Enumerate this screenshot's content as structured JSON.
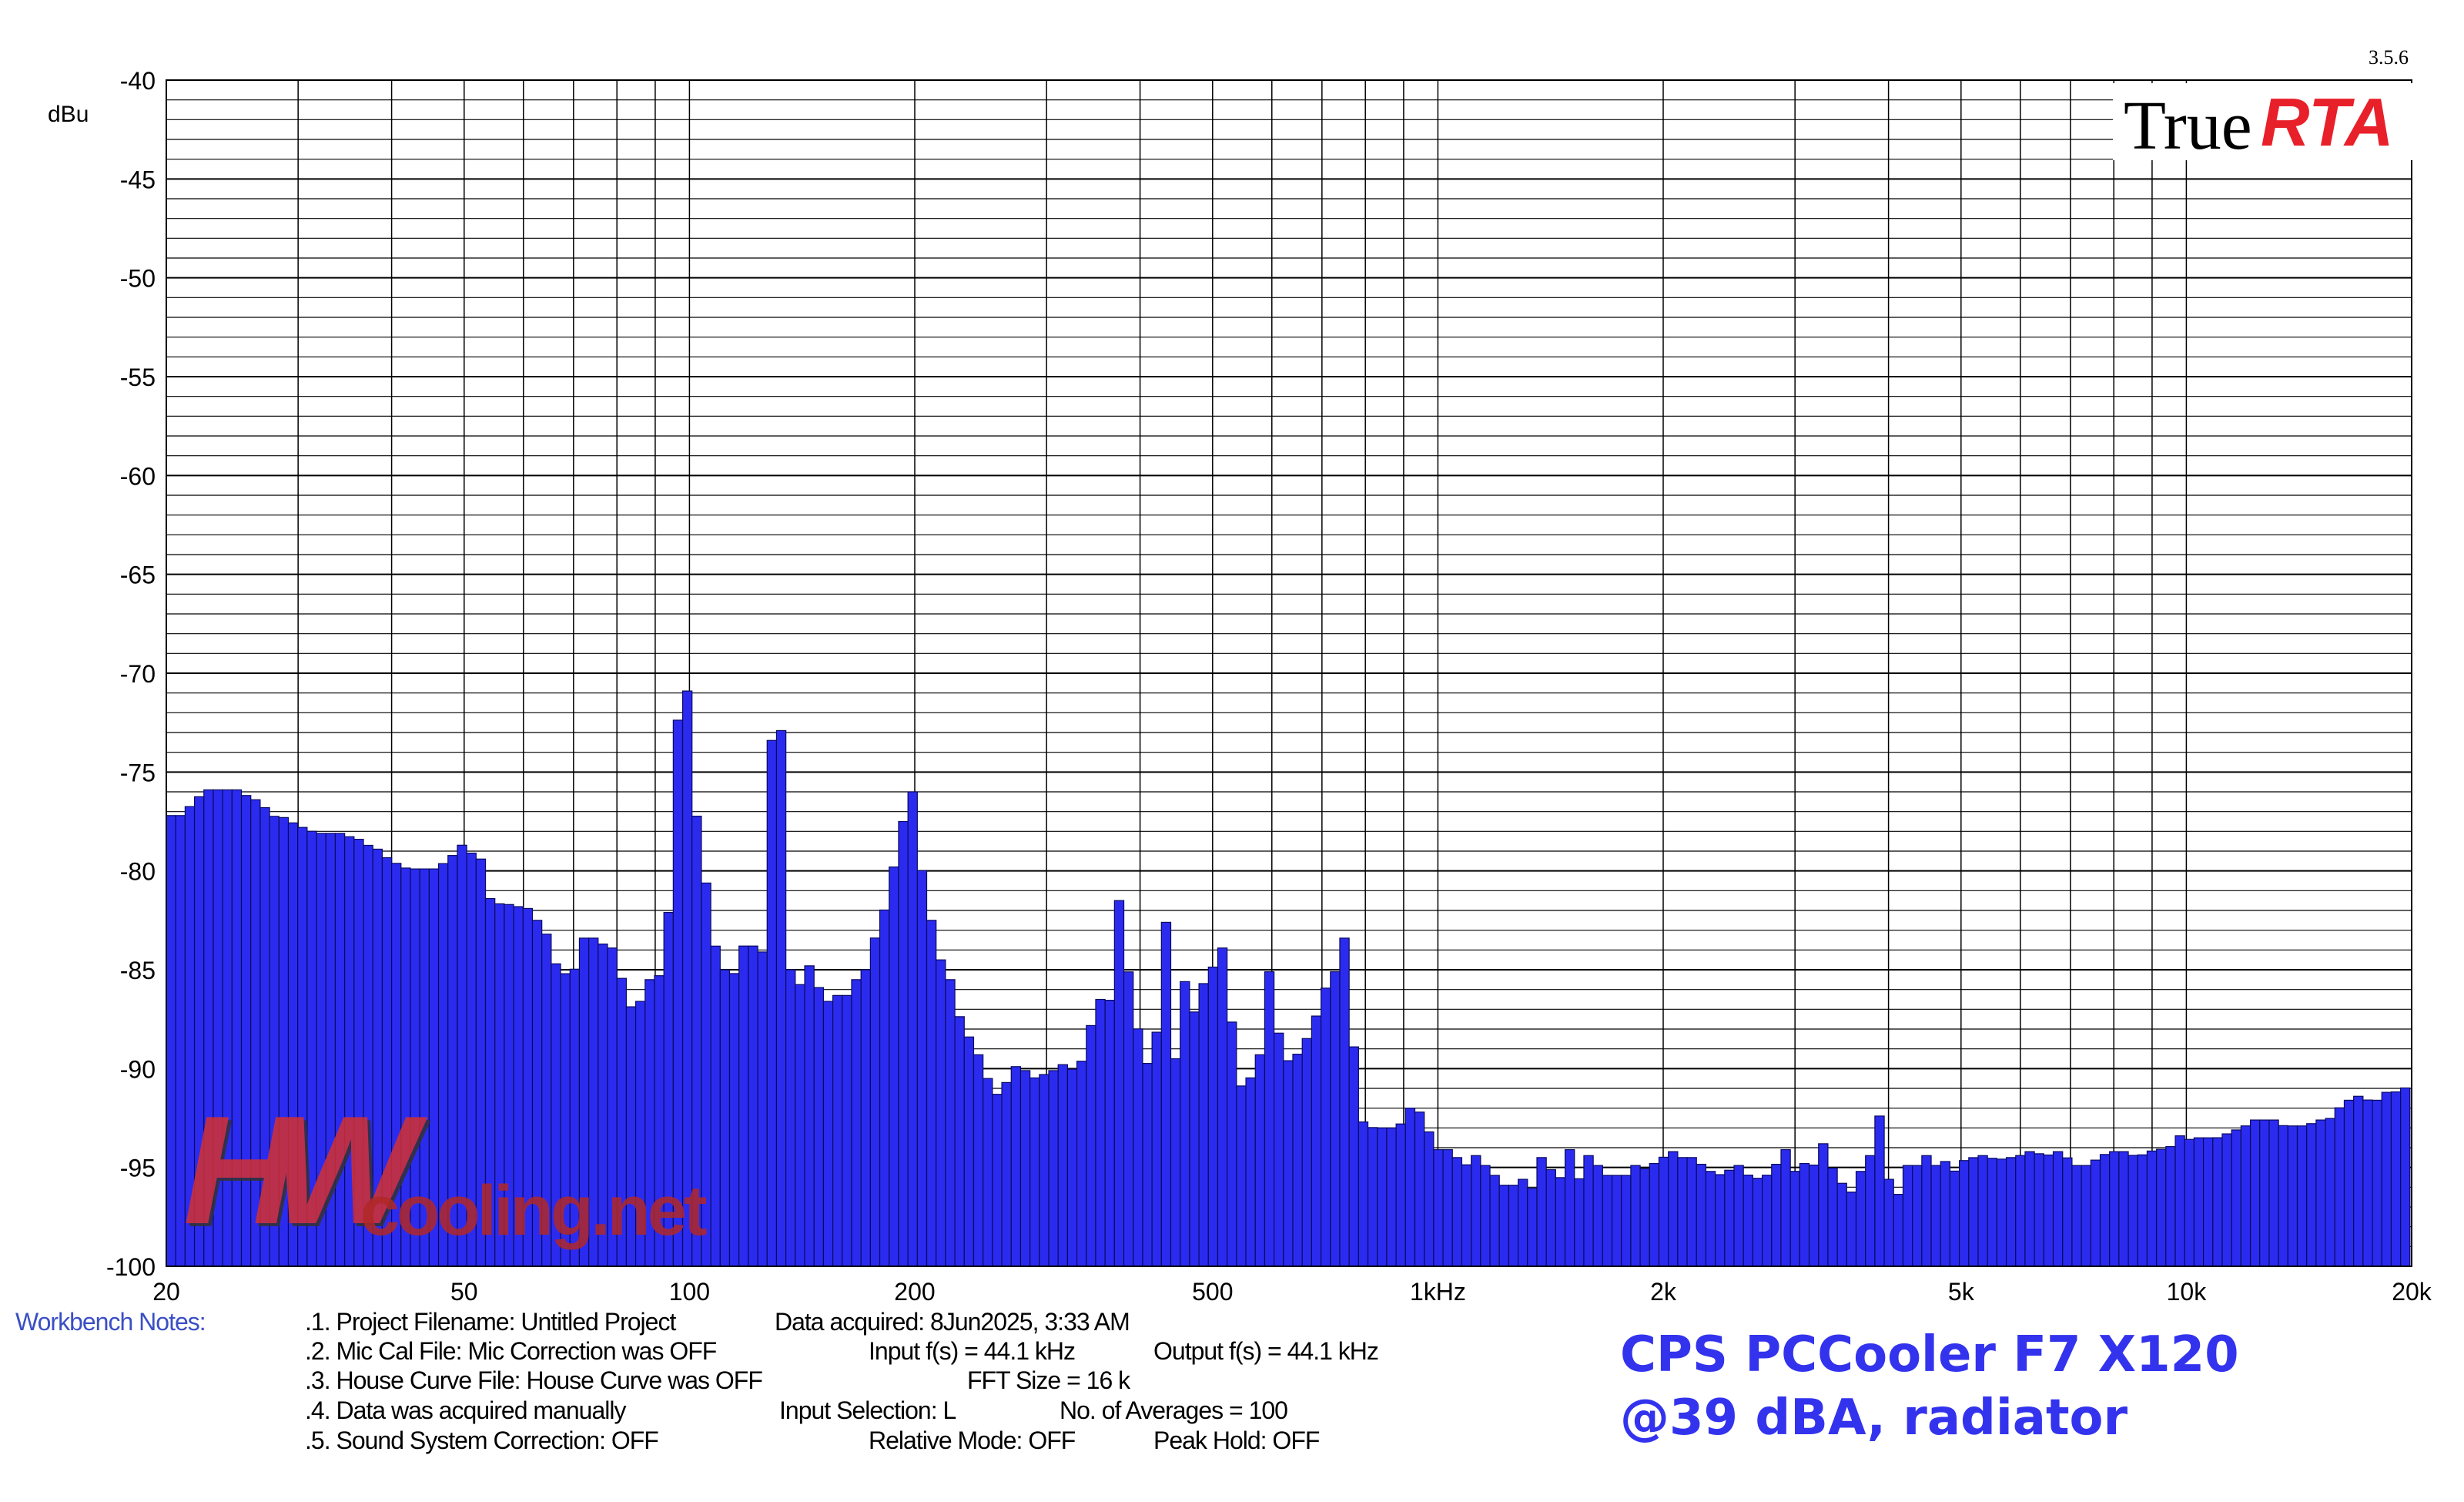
{
  "chart_data": {
    "type": "bar",
    "yunit": "dBu",
    "ylim": [
      -100,
      -40
    ],
    "xlim": [
      20,
      20000
    ],
    "x_scale": "log",
    "y_ticks": [
      "-40",
      "-45",
      "-50",
      "-55",
      "-60",
      "-65",
      "-70",
      "-75",
      "-80",
      "-85",
      "-90",
      "-95",
      "-100"
    ],
    "y_tick_values": [
      -40,
      -45,
      -50,
      -55,
      -60,
      -65,
      -70,
      -75,
      -80,
      -85,
      -90,
      -95,
      -100
    ],
    "x_ticks": [
      "20",
      "50",
      "100",
      "200",
      "500",
      "1kHz",
      "2k",
      "5k",
      "10k",
      "20k"
    ],
    "x_tick_values": [
      20,
      50,
      100,
      200,
      500,
      1000,
      2000,
      5000,
      10000,
      20000
    ],
    "grid": true,
    "bar_color": "#2b2bf0",
    "anchor_freqs": [
      20,
      21,
      22,
      23,
      24,
      25,
      26,
      27,
      28,
      29,
      30,
      32,
      34,
      36,
      38,
      40,
      42,
      44,
      46,
      48,
      50,
      52,
      54,
      56,
      58,
      60,
      62,
      64,
      66,
      68,
      70,
      72,
      74,
      76,
      78,
      80,
      82,
      84,
      86,
      88,
      90,
      92,
      94,
      96,
      98,
      100,
      103,
      106,
      109,
      112,
      115,
      118,
      121,
      123,
      126,
      129,
      132,
      135,
      138,
      141,
      144,
      147,
      150,
      153,
      156,
      159,
      162,
      165,
      168,
      171,
      174,
      177,
      180,
      185,
      190,
      195,
      200,
      205,
      210,
      215,
      220,
      225,
      230,
      235,
      240,
      245,
      250,
      255,
      260,
      270,
      280,
      290,
      300,
      310,
      320,
      330,
      340,
      350,
      360,
      370,
      380,
      390,
      400,
      410,
      420,
      430,
      440,
      450,
      460,
      470,
      480,
      490,
      500,
      520,
      540,
      560,
      580,
      600,
      620,
      640,
      660,
      680,
      700,
      720,
      740,
      760,
      780,
      800,
      820,
      840,
      860,
      880,
      900,
      920,
      940,
      960,
      980,
      1000,
      1030,
      1060,
      1090,
      1120,
      1150,
      1180,
      1210,
      1240,
      1270,
      1300,
      1330,
      1360,
      1390,
      1420,
      1450,
      1480,
      1510,
      1540,
      1570,
      1600,
      1630,
      1660,
      1690,
      1720,
      1750,
      1800,
      1850,
      1900,
      1950,
      2000,
      2050,
      2100,
      2150,
      2200,
      2300,
      2400,
      2500,
      2600,
      2700,
      2800,
      2900,
      3000,
      3100,
      3200,
      3300,
      3400,
      3500,
      3600,
      3700,
      3800,
      3900,
      4000,
      4100,
      4200,
      4300,
      4400,
      4500,
      4600,
      4700,
      4800,
      4900,
      5000,
      5300,
      5600,
      5900,
      6200,
      6500,
      6800,
      7100,
      7400,
      7700,
      8000,
      8300,
      8600,
      8900,
      9200,
      9500,
      9800,
      10000,
      10500,
      11000,
      11500,
      12000,
      12500,
      13000,
      13500,
      14000,
      14500,
      15000,
      15500,
      16000,
      16500,
      17000,
      17500,
      18000,
      18500,
      19000,
      19500,
      20000
    ],
    "anchor_values": [
      -77.2,
      -77.2,
      -76.3,
      -75.9,
      -75.9,
      -75.9,
      -76.4,
      -76.8,
      -77.3,
      -77.3,
      -77.8,
      -78.1,
      -78.1,
      -78.4,
      -78.9,
      -79.5,
      -79.9,
      -79.9,
      -79.9,
      -79.3,
      -78.7,
      -79.4,
      -81.4,
      -81.7,
      -81.7,
      -81.9,
      -82.5,
      -83.2,
      -84.7,
      -85.2,
      -85.2,
      -83.4,
      -83.4,
      -83.7,
      -83.9,
      -84.5,
      -86.1,
      -87.1,
      -86.6,
      -85.5,
      -86.0,
      -85.3,
      -82.1,
      -72.9,
      -70.9,
      -73.3,
      -78.5,
      -81.3,
      -84.5,
      -85.1,
      -85.2,
      -83.8,
      -83.8,
      -87.0,
      -84.1,
      -73.4,
      -72.9,
      -86.6,
      -85.0,
      -85.9,
      -84.8,
      -85.9,
      -87.2,
      -86.6,
      -87.7,
      -86.3,
      -86.3,
      -87.3,
      -85.5,
      -85.5,
      -85.0,
      -83.4,
      -82.6,
      -81.2,
      -79.8,
      -77.5,
      -76.0,
      -80.4,
      -82.5,
      -84.5,
      -85.5,
      -86.0,
      -87.5,
      -88.4,
      -89.3,
      -89.8,
      -90.5,
      -91.3,
      -91.6,
      -89.9,
      -90.1,
      -90.5,
      -90.3,
      -90.1,
      -89.8,
      -90.3,
      -88.7,
      -86.5,
      -87.7,
      -85.1,
      -81.5,
      -87.4,
      -88.2,
      -89.9,
      -88.8,
      -82.6,
      -89.5,
      -90.6,
      -85.6,
      -87.5,
      -86.1,
      -85.7,
      -84.9,
      -83.9,
      -91.0,
      -90.6,
      -89.3,
      -85.1,
      -89.9,
      -89.6,
      -88.9,
      -87.9,
      -86.5,
      -85.1,
      -86.5,
      -83.4,
      -92.4,
      -92.8,
      -93.0,
      -93.0,
      -93.0,
      -93.0,
      -92.8,
      -92.0,
      -92.2,
      -93.2,
      -93.2,
      -94.1,
      -94.1,
      -94.5,
      -94.9,
      -94.4,
      -94.9,
      -95.4,
      -95.9,
      -96.3,
      -95.9,
      -95.6,
      -96.3,
      -95.2,
      -94.5,
      -95.2,
      -95.9,
      -94.4,
      -94.1,
      -95.6,
      -95.4,
      -94.4,
      -94.9,
      -95.6,
      -95.4,
      -95.4,
      -95.9,
      -95.4,
      -94.9,
      -95.1,
      -94.8,
      -94.5,
      -94.2,
      -94.5,
      -94.9,
      -94.5,
      -95.2,
      -95.4,
      -94.9,
      -95.4,
      -95.6,
      -95.2,
      -94.1,
      -95.2,
      -94.8,
      -94.9,
      -93.8,
      -95.6,
      -95.9,
      -96.4,
      -95.2,
      -94.4,
      -92.4,
      -95.6,
      -96.8,
      -94.9,
      -95.4,
      -94.9,
      -94.4,
      -94.9,
      -95.4,
      -94.7,
      -95.2,
      -94.7,
      -94.4,
      -94.6,
      -94.5,
      -94.2,
      -94.4,
      -94.2,
      -94.9,
      -94.9,
      -94.4,
      -94.2,
      -94.2,
      -94.5,
      -94.2,
      -94.1,
      -94.0,
      -93.4,
      -93.6,
      -93.5,
      -93.5,
      -93.2,
      -92.9,
      -92.6,
      -92.6,
      -92.9,
      -92.9,
      -92.9,
      -92.6,
      -92.6,
      -92.0,
      -91.6,
      -91.4,
      -91.6,
      -91.6,
      -91.2,
      -91.2,
      -91.0,
      -90.9,
      -90.9,
      -90.7,
      -90.5,
      -90.0
    ]
  },
  "meta": {
    "version": "3.5.6",
    "logo_true": "True",
    "logo_rta": "RTA",
    "watermark_hw": "HW",
    "watermark_domain": "cooling.net"
  },
  "notes": {
    "header": "Workbench Notes:",
    "lines": [
      ".1. Project Filename: Untitled Project",
      ".2. Mic Cal File: Mic Correction was OFF",
      ".3. House Curve File: House Curve was OFF",
      ".4. Data was acquired manually",
      ".5. Sound System Correction: OFF"
    ],
    "data_acquired": "Data acquired: 8Jun2025, 3:33 AM",
    "input_fs": "Input f(s) = 44.1 kHz",
    "output_fs": "Output f(s) = 44.1 kHz",
    "fft_size": "FFT Size = 16 k",
    "input_selection": "Input Selection: L",
    "averages": "No. of Averages = 100",
    "relative_mode": "Relative Mode:  OFF",
    "peak_hold": "Peak Hold: OFF"
  },
  "caption": {
    "line1": "CPS PCCooler F7 X120",
    "line2": "@39 dBA, radiator"
  }
}
